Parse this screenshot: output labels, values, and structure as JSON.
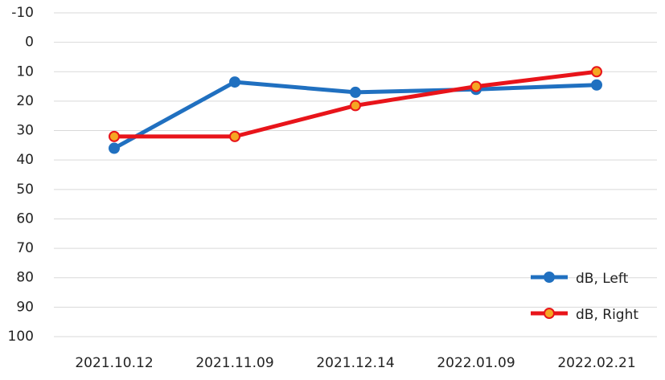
{
  "chart_data": {
    "type": "line",
    "categories": [
      "2021.10.12",
      "2021.11.09",
      "2021.12.14",
      "2022.01.09",
      "2022.02.21"
    ],
    "series": [
      {
        "name": "dB, Left",
        "color": "#2070c0",
        "marker_color": "#2070c0",
        "values": [
          36,
          13.5,
          17,
          16,
          14.5
        ]
      },
      {
        "name": "dB, Right",
        "color": "#e8141a",
        "marker_color": "#f5a623",
        "values": [
          32,
          32,
          21.5,
          15,
          10
        ]
      }
    ],
    "ylim": [
      -10,
      100
    ],
    "y_inverted": true,
    "yticks": [
      -10,
      0,
      10,
      20,
      30,
      40,
      50,
      60,
      70,
      80,
      90,
      100
    ],
    "grid": true,
    "legend": "lower-right"
  }
}
